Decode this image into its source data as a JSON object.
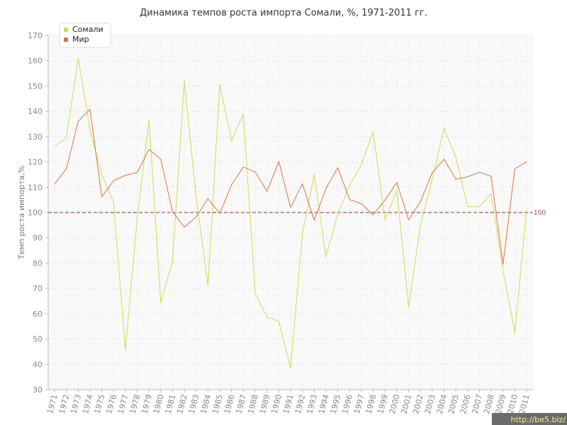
{
  "chart_data": {
    "type": "line",
    "title": "Динамика темпов роста импорта Сомали, %, 1971-2011 гг.",
    "ylabel": "Темп роста импорта,%",
    "xlabel": "",
    "ylim": [
      30,
      170
    ],
    "yticks": [
      30,
      40,
      50,
      60,
      70,
      80,
      90,
      100,
      110,
      120,
      130,
      140,
      150,
      160,
      170
    ],
    "grid": true,
    "legend_position": "top-left",
    "x": [
      "1971",
      "1972",
      "1973",
      "1974",
      "1975",
      "1976",
      "1977",
      "1978",
      "1979",
      "1980",
      "1981",
      "1982",
      "1983",
      "1984",
      "1985",
      "1986",
      "1987",
      "1988",
      "1989",
      "1990",
      "1991",
      "1992",
      "1993",
      "1994",
      "1995",
      "1996",
      "1997",
      "1998",
      "1999",
      "2000",
      "2001",
      "2002",
      "2003",
      "2004",
      "2005",
      "2006",
      "2007",
      "2008",
      "2009",
      "2010",
      "2011"
    ],
    "series": [
      {
        "name": "Сомали",
        "color": "#c8df52",
        "values": [
          126.2,
          129.5,
          161,
          132.6,
          115,
          104,
          45.5,
          98,
          136.6,
          64.3,
          81,
          152,
          106,
          71.2,
          150.6,
          128.4,
          139,
          68,
          58.7,
          57,
          38.5,
          91.5,
          115.1,
          82.5,
          99.5,
          110.6,
          119,
          132.1,
          96.9,
          108.8,
          62.6,
          94.9,
          113,
          133.3,
          122,
          102.3,
          102.3,
          107.4,
          77.4,
          52.5,
          101
        ]
      },
      {
        "name": "Мир",
        "color": "#e07046",
        "values": [
          111.2,
          117.3,
          136,
          140.8,
          106.2,
          112.6,
          114.7,
          115.8,
          125,
          121.1,
          100.2,
          94.2,
          98.3,
          105.5,
          99.6,
          111,
          118,
          116,
          108.4,
          120.2,
          102,
          111.4,
          97,
          109.5,
          117.7,
          105.1,
          103.5,
          99.1,
          104.9,
          111.9,
          97.1,
          104.2,
          115.7,
          121.1,
          113.2,
          114.1,
          115.9,
          114.3,
          79.5,
          117.3,
          120
        ]
      }
    ],
    "reference_line": {
      "value": 100,
      "label": "100",
      "color": "#8b2a2a"
    }
  },
  "watermark": "http://be5.biz/"
}
